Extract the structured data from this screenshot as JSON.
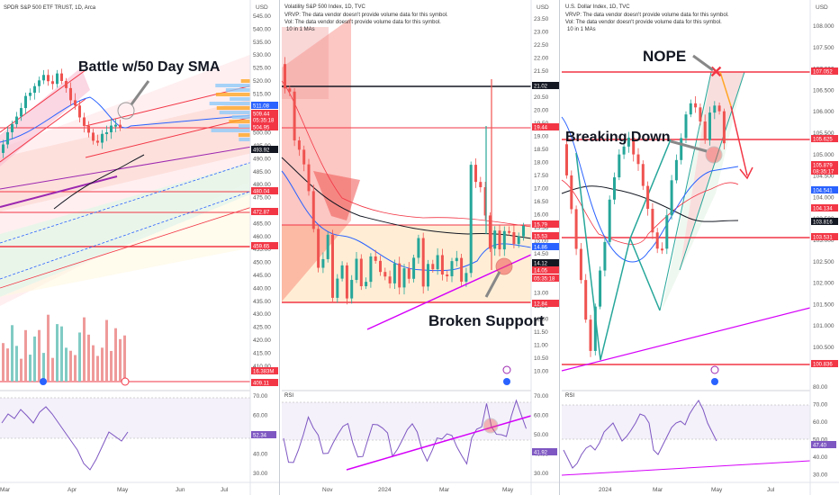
{
  "panels": [
    {
      "id": "spy",
      "title": "SPDR S&P 500 ETF TRUST, 1D, Arca",
      "info": [],
      "ytick_labels": [
        "545.00",
        "540.00",
        "535.00",
        "530.00",
        "525.00",
        "520.00",
        "515.00",
        "510.00",
        "505.00",
        "500.00",
        "495.00",
        "490.00",
        "485.00",
        "480.00",
        "475.00",
        "470.00",
        "465.00",
        "460.00",
        "455.00",
        "450.00",
        "445.00",
        "440.00",
        "435.00",
        "430.00",
        "425.00",
        "420.00",
        "415.00",
        "410.00"
      ],
      "price_badges": [
        {
          "label": "511.08",
          "color": "#2962ff"
        },
        {
          "label": "509.44",
          "color": "#f23645"
        },
        {
          "label": "05:35:18",
          "color": "#f23645"
        },
        {
          "label": "504.95",
          "color": "#f23645"
        },
        {
          "label": "493.92",
          "color": "#131722"
        },
        {
          "label": "480.04",
          "color": "#f23645"
        },
        {
          "label": "472.87",
          "color": "#f23645"
        },
        {
          "label": "459.65",
          "color": "#f23645"
        },
        {
          "label": "16.383M",
          "color": "#f23645"
        },
        {
          "label": "409.11",
          "color": "#f23645"
        }
      ],
      "annotation": "Battle w/50 Day SMA",
      "rsi_label": "",
      "rsi_ticks": [
        "70.00",
        "60.00",
        "50.00",
        "40.00",
        "30.00"
      ],
      "rsi_value": "52.34",
      "xtick_labels": [
        "Mar",
        "Apr",
        "May",
        "Jun",
        "Jul"
      ]
    },
    {
      "id": "vix",
      "title": "Volatility S&P 500 Index, 1D, TVC",
      "info": [
        "VRVP: The data vendor doesn't provide volume data for this symbol.",
        "Vol: The data vendor doesn't provide volume data for this symbol.",
        "10 in 1 MAs"
      ],
      "ytick_labels": [
        "23.50",
        "23.00",
        "22.50",
        "22.00",
        "21.50",
        "21.00",
        "20.50",
        "20.00",
        "19.50",
        "19.00",
        "18.50",
        "18.00",
        "17.50",
        "17.00",
        "16.50",
        "16.00",
        "15.50",
        "15.00",
        "14.50",
        "14.00",
        "13.50",
        "13.00",
        "12.50",
        "12.00",
        "11.50",
        "11.00",
        "10.50",
        "10.00"
      ],
      "price_badges": [
        {
          "label": "21.02",
          "color": "#131722"
        },
        {
          "label": "19.44",
          "color": "#f23645"
        },
        {
          "label": "15.79",
          "color": "#f23645"
        },
        {
          "label": "15.53",
          "color": "#f23645"
        },
        {
          "label": "14.86",
          "color": "#2962ff"
        },
        {
          "label": "14.12",
          "color": "#131722"
        },
        {
          "label": "14.05",
          "color": "#f23645"
        },
        {
          "label": "05:35:18",
          "color": "#f23645"
        },
        {
          "label": "12.84",
          "color": "#f23645"
        }
      ],
      "annotation": "Broken Support",
      "rsi_label": "RSI",
      "rsi_ticks": [
        "70.00",
        "60.00",
        "50.00",
        "40.00",
        "30.00"
      ],
      "rsi_value": "41.92",
      "xtick_labels": [
        "Nov",
        "2024",
        "Mar",
        "May"
      ]
    },
    {
      "id": "dxy",
      "title": "U.S. Dollar Index, 1D, TVC",
      "info": [
        "VRVP: The data vendor doesn't provide volume data for this symbol.",
        "Vol: The data vendor doesn't provide volume data for this symbol.",
        "10 in 1 MAs"
      ],
      "ytick_labels": [
        "108.000",
        "107.500",
        "107.000",
        "106.500",
        "106.000",
        "105.500",
        "105.000",
        "104.500",
        "104.000",
        "103.500",
        "103.000",
        "102.500",
        "102.000",
        "101.500",
        "101.000",
        "100.500"
      ],
      "price_badges": [
        {
          "label": "107.052",
          "color": "#f23645"
        },
        {
          "label": "105.625",
          "color": "#f23645"
        },
        {
          "label": "105.879",
          "color": "#f23645"
        },
        {
          "label": "08:35:17",
          "color": "#f23645"
        },
        {
          "label": "104.541",
          "color": "#2962ff"
        },
        {
          "label": "104.134",
          "color": "#f23645"
        },
        {
          "label": "103.816",
          "color": "#131722"
        },
        {
          "label": "103.531",
          "color": "#f23645"
        },
        {
          "label": "100.836",
          "color": "#f23645"
        }
      ],
      "annotation_top": "NOPE",
      "annotation": "Breaking Down",
      "rsi_label": "RSI",
      "rsi_ticks": [
        "80.00",
        "70.00",
        "60.00",
        "50.00",
        "40.00",
        "30.00"
      ],
      "rsi_value": "47.40",
      "xtick_labels": [
        "2024",
        "Mar",
        "May",
        "Jul"
      ]
    }
  ],
  "currency": "USD",
  "colors": {
    "up": "#26a69a",
    "down": "#ef5350",
    "ma_blue": "#2962ff",
    "ma_black": "#131722",
    "rsi": "#7e57c2",
    "trend": "#d500f9",
    "red_line": "#f23645"
  },
  "chart_data": [
    {
      "type": "candlestick",
      "title": "SPDR S&P 500 ETF TRUST, 1D, Arca",
      "ylim": [
        408,
        547
      ],
      "x": [
        "Mar",
        "Apr",
        "May"
      ],
      "close_approx": [
        508,
        512,
        518,
        522,
        519,
        514,
        510,
        503,
        499,
        505,
        502,
        509
      ],
      "levels": [
        504.95,
        480.04,
        472.87,
        459.65
      ],
      "last": 509.44,
      "sma50": 511.08
    },
    {
      "type": "line",
      "title": "Volatility S&P 500 Index, 1D, TVC",
      "ylim": [
        9.8,
        23.8
      ],
      "x": [
        "Nov",
        "2024",
        "Mar",
        "May"
      ],
      "levels": [
        21.02,
        19.44,
        15.79,
        12.84
      ],
      "last": 14.05
    },
    {
      "type": "candlestick",
      "title": "U.S. Dollar Index, 1D, TVC",
      "ylim": [
        100.3,
        108.3
      ],
      "x": [
        "2024",
        "Mar",
        "May",
        "Jul"
      ],
      "levels": [
        107.052,
        105.625,
        103.531,
        100.836
      ],
      "last": 105.879
    }
  ]
}
